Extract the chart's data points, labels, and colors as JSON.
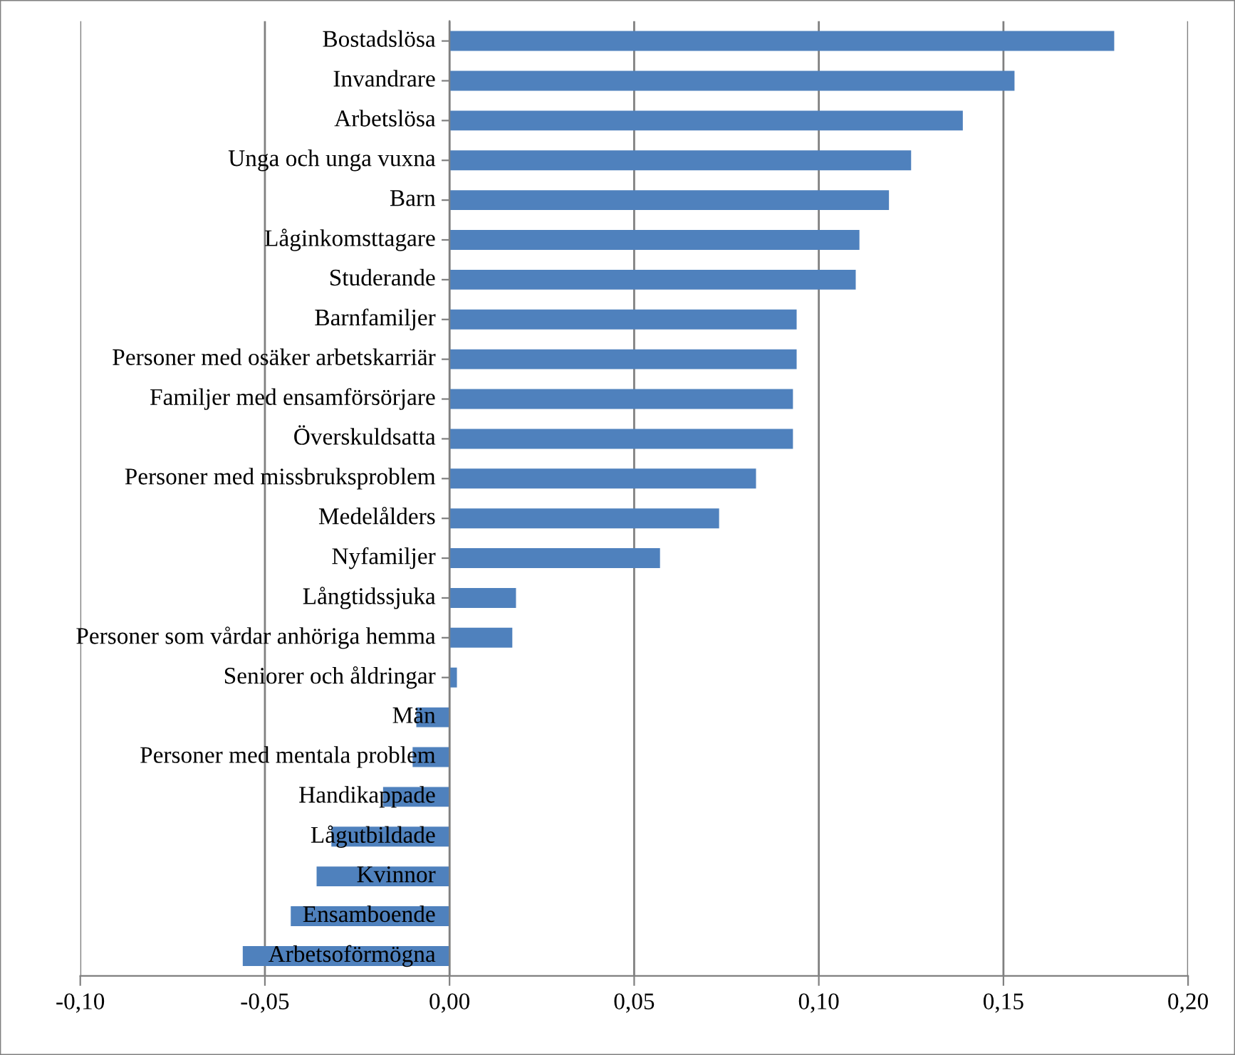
{
  "chart_data": {
    "type": "bar",
    "orientation": "horizontal",
    "categories": [
      "Bostadslösa",
      "Invandrare",
      "Arbetslösa",
      "Unga och unga vuxna",
      "Barn",
      "Låginkomsttagare",
      "Studerande",
      "Barnfamiljer",
      "Personer med osäker arbetskarriär",
      "Familjer med ensamförsörjare",
      "Överskuldsatta",
      "Personer med missbruksproblem",
      "Medelålders",
      "Nyfamiljer",
      "Långtidssjuka",
      "Personer som vårdar anhöriga hemma",
      "Seniorer och åldringar",
      "Män",
      "Personer med mentala problem",
      "Handikappade",
      "Lågutbildade",
      "Kvinnor",
      "Ensamboende",
      "Arbetsoförmögna"
    ],
    "values": [
      0.18,
      0.153,
      0.139,
      0.125,
      0.119,
      0.111,
      0.11,
      0.094,
      0.094,
      0.093,
      0.093,
      0.083,
      0.073,
      0.057,
      0.018,
      0.017,
      0.002,
      -0.009,
      -0.01,
      -0.018,
      -0.032,
      -0.036,
      -0.043,
      -0.056
    ],
    "color": "#4f81bd",
    "xlim": [
      -0.1,
      0.2
    ],
    "xticks": [
      {
        "value": -0.1,
        "label": "-0,10"
      },
      {
        "value": -0.05,
        "label": "-0,05"
      },
      {
        "value": 0.0,
        "label": "0,00"
      },
      {
        "value": 0.05,
        "label": "0,05"
      },
      {
        "value": 0.1,
        "label": "0,10"
      },
      {
        "value": 0.15,
        "label": "0,15"
      },
      {
        "value": 0.2,
        "label": "0,20"
      }
    ],
    "grid": "x"
  }
}
